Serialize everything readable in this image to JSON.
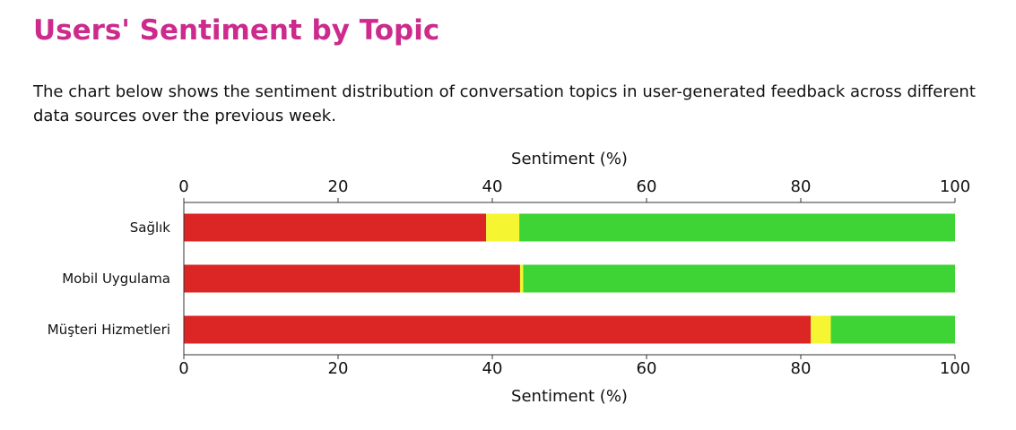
{
  "page": {
    "title": "Users' Sentiment by Topic",
    "description": "The chart below shows the sentiment distribution of conversation topics in user-generated feedback across different data sources over the previous week.",
    "accent_color": "#cc2b8d"
  },
  "chart_data": {
    "type": "bar",
    "orientation": "horizontal",
    "stacked": true,
    "xlabel": "Sentiment (%)",
    "xlim": [
      0,
      100
    ],
    "xticks": [
      0,
      20,
      40,
      60,
      80,
      100
    ],
    "axis_positions": [
      "top",
      "bottom"
    ],
    "grid": false,
    "legend": "none",
    "categories": [
      "Sağlık",
      "Mobil Uygulama",
      "Müşteri Hizmetleri"
    ],
    "series": [
      {
        "color": "#dc2626",
        "values": [
          39.2,
          43.6,
          81.3
        ]
      },
      {
        "color": "#f5f532",
        "values": [
          4.3,
          0.4,
          2.6
        ]
      },
      {
        "color": "#3ed435",
        "values": [
          56.5,
          56.0,
          16.1
        ]
      }
    ]
  }
}
